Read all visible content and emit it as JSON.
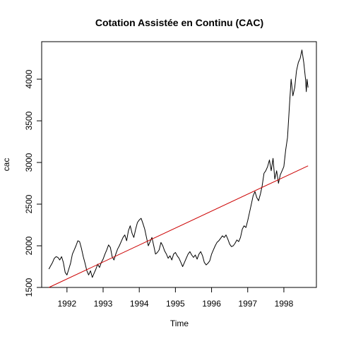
{
  "chart_data": {
    "type": "line",
    "title": "Cotation Assistée en Continu (CAC)",
    "xlabel": "Time",
    "ylabel": "cac",
    "xlim": [
      1991.3,
      1998.9
    ],
    "ylim": [
      1500,
      4450
    ],
    "x_ticks": [
      1992,
      1993,
      1994,
      1995,
      1996,
      1997,
      1998
    ],
    "y_ticks": [
      1500,
      2000,
      2500,
      3000,
      3500,
      4000
    ],
    "grid": false,
    "legend": "none",
    "series": [
      {
        "color": "#000000",
        "x": [
          1991.5,
          1991.55,
          1991.6,
          1991.65,
          1991.7,
          1991.75,
          1991.8,
          1991.85,
          1991.9,
          1991.95,
          1992.0,
          1992.05,
          1992.1,
          1992.15,
          1992.2,
          1992.25,
          1992.3,
          1992.35,
          1992.4,
          1992.45,
          1992.5,
          1992.55,
          1992.6,
          1992.65,
          1992.7,
          1992.75,
          1992.8,
          1992.85,
          1992.9,
          1992.95,
          1993.0,
          1993.05,
          1993.1,
          1993.15,
          1993.2,
          1993.25,
          1993.3,
          1993.35,
          1993.4,
          1993.45,
          1993.5,
          1993.55,
          1993.6,
          1993.65,
          1993.7,
          1993.75,
          1993.8,
          1993.85,
          1993.9,
          1993.95,
          1994.0,
          1994.05,
          1994.1,
          1994.15,
          1994.2,
          1994.25,
          1994.3,
          1994.35,
          1994.4,
          1994.45,
          1994.5,
          1994.55,
          1994.6,
          1994.65,
          1994.7,
          1994.75,
          1994.8,
          1994.85,
          1994.9,
          1994.95,
          1995.0,
          1995.05,
          1995.1,
          1995.15,
          1995.2,
          1995.25,
          1995.3,
          1995.35,
          1995.4,
          1995.45,
          1995.5,
          1995.55,
          1995.6,
          1995.65,
          1995.7,
          1995.75,
          1995.8,
          1995.85,
          1995.9,
          1995.95,
          1996.0,
          1996.05,
          1996.1,
          1996.15,
          1996.2,
          1996.25,
          1996.3,
          1996.35,
          1996.4,
          1996.45,
          1996.5,
          1996.55,
          1996.6,
          1996.65,
          1996.7,
          1996.75,
          1996.8,
          1996.85,
          1996.9,
          1996.95,
          1997.0,
          1997.05,
          1997.1,
          1997.15,
          1997.2,
          1997.25,
          1997.3,
          1997.35,
          1997.4,
          1997.45,
          1997.5,
          1997.55,
          1997.6,
          1997.65,
          1997.7,
          1997.75,
          1997.8,
          1997.85,
          1997.9,
          1997.95,
          1998.0,
          1998.05,
          1998.1,
          1998.15,
          1998.2,
          1998.25,
          1998.3,
          1998.35,
          1998.4,
          1998.45,
          1998.5,
          1998.55,
          1998.6,
          1998.62,
          1998.64,
          1998.67
        ],
        "values": [
          1720,
          1760,
          1800,
          1850,
          1870,
          1860,
          1830,
          1870,
          1800,
          1680,
          1650,
          1720,
          1790,
          1900,
          1950,
          2000,
          2060,
          2050,
          1970,
          1870,
          1790,
          1700,
          1650,
          1700,
          1620,
          1670,
          1720,
          1780,
          1740,
          1800,
          1840,
          1900,
          1950,
          2010,
          1980,
          1870,
          1830,
          1900,
          1960,
          2000,
          2050,
          2100,
          2130,
          2060,
          2180,
          2240,
          2150,
          2100,
          2200,
          2280,
          2310,
          2330,
          2270,
          2200,
          2100,
          2000,
          2050,
          2100,
          2000,
          1900,
          1920,
          1950,
          2040,
          2000,
          1940,
          1900,
          1850,
          1880,
          1830,
          1900,
          1920,
          1880,
          1850,
          1800,
          1750,
          1800,
          1850,
          1900,
          1930,
          1890,
          1860,
          1890,
          1840,
          1900,
          1930,
          1880,
          1800,
          1770,
          1790,
          1820,
          1900,
          1950,
          2000,
          2040,
          2060,
          2090,
          2120,
          2100,
          2130,
          2080,
          2020,
          1990,
          2000,
          2030,
          2070,
          2050,
          2100,
          2200,
          2240,
          2220,
          2300,
          2400,
          2500,
          2600,
          2650,
          2580,
          2540,
          2620,
          2720,
          2870,
          2900,
          2950,
          3030,
          2900,
          3050,
          2800,
          2900,
          2750,
          2850,
          2900,
          2950,
          3150,
          3300,
          3650,
          4000,
          3800,
          3900,
          4100,
          4200,
          4250,
          4350,
          4200,
          4000,
          3850,
          4000,
          3900
        ]
      },
      {
        "color": "#cc0000",
        "x": [
          1991.5,
          1998.67
        ],
        "values": [
          1500,
          2960
        ]
      }
    ]
  }
}
